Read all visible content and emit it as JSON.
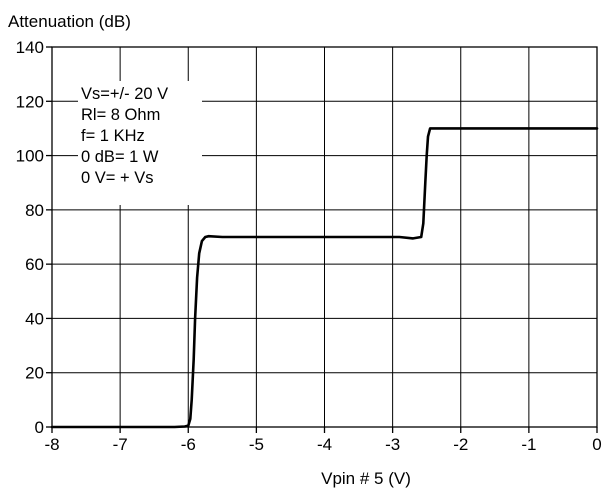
{
  "chart_data": {
    "type": "line",
    "title": "",
    "ylabel": "Attenuation (dB)",
    "xlabel": "Vpin # 5 (V)",
    "xlim": [
      -8,
      0
    ],
    "ylim": [
      0,
      140
    ],
    "x_ticks": [
      -8,
      -7,
      -6,
      -5,
      -4,
      -3,
      -2,
      -1,
      0
    ],
    "y_ticks": [
      0,
      20,
      40,
      60,
      80,
      100,
      120,
      140
    ],
    "x_tick_labels": [
      "-8",
      "-7",
      "-6",
      "-5",
      "-4",
      "-3",
      "-2",
      "-1",
      "0"
    ],
    "y_tick_labels": [
      "0",
      "20",
      "40",
      "60",
      "80",
      "100",
      "120",
      "140"
    ],
    "grid": true,
    "annotations": [
      "Vs=+/- 20 V",
      "Rl= 8 Ohm",
      "f= 1 KHz",
      "0 dB= 1 W",
      "0 V= + Vs"
    ],
    "series": [
      {
        "points": [
          [
            -8.0,
            0
          ],
          [
            -6.2,
            0
          ],
          [
            -6.05,
            0.2
          ],
          [
            -6.0,
            0.5
          ],
          [
            -5.97,
            3
          ],
          [
            -5.95,
            10
          ],
          [
            -5.92,
            25
          ],
          [
            -5.9,
            40
          ],
          [
            -5.87,
            55
          ],
          [
            -5.84,
            64
          ],
          [
            -5.8,
            68.5
          ],
          [
            -5.75,
            70
          ],
          [
            -5.7,
            70.3
          ],
          [
            -5.5,
            70
          ],
          [
            -4.0,
            70
          ],
          [
            -2.9,
            70
          ],
          [
            -2.7,
            69.5
          ],
          [
            -2.58,
            70
          ],
          [
            -2.55,
            75
          ],
          [
            -2.52,
            90
          ],
          [
            -2.5,
            100
          ],
          [
            -2.48,
            107
          ],
          [
            -2.45,
            110
          ],
          [
            -2.4,
            110
          ],
          [
            0,
            110
          ]
        ]
      }
    ]
  }
}
